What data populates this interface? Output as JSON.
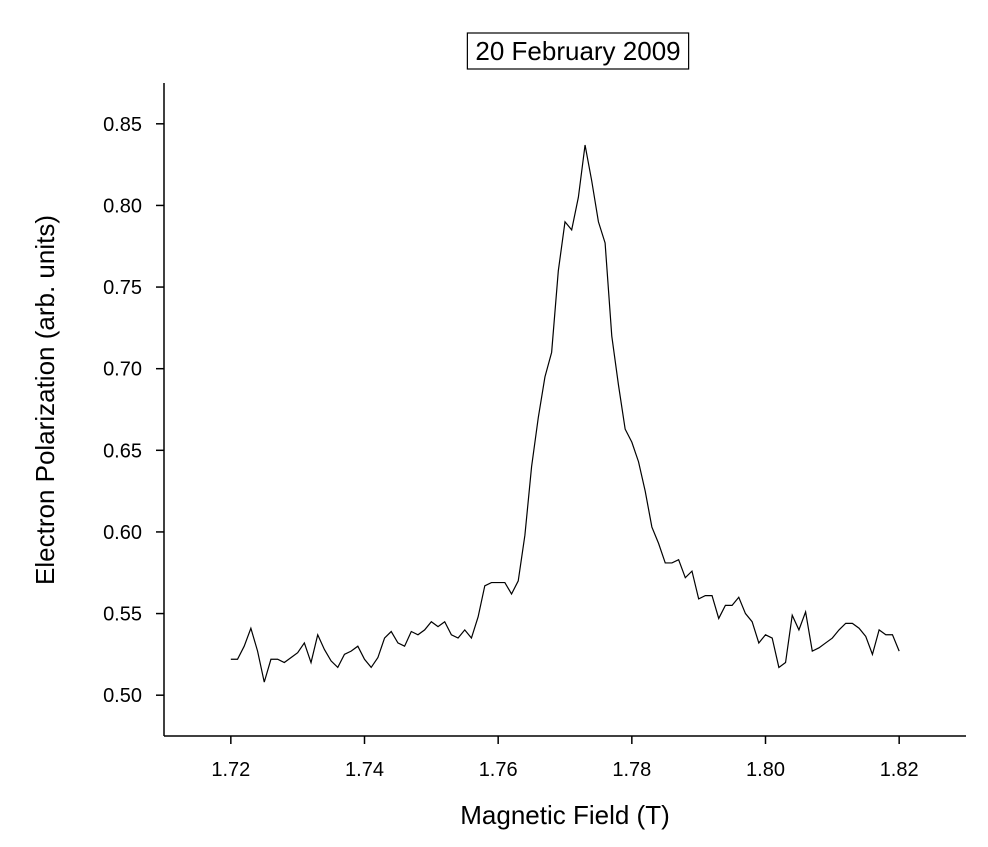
{
  "chart_data": {
    "type": "line",
    "title": "20 February 2009",
    "x_label": "Magnetic Field (T)",
    "y_label": "Electron Polarization (arb. units)",
    "x": [
      1.72,
      1.721,
      1.722,
      1.723,
      1.724,
      1.725,
      1.726,
      1.727,
      1.728,
      1.729,
      1.73,
      1.731,
      1.732,
      1.733,
      1.734,
      1.735,
      1.736,
      1.737,
      1.738,
      1.739,
      1.74,
      1.741,
      1.742,
      1.743,
      1.744,
      1.745,
      1.746,
      1.747,
      1.748,
      1.749,
      1.75,
      1.751,
      1.752,
      1.753,
      1.754,
      1.755,
      1.756,
      1.757,
      1.758,
      1.759,
      1.76,
      1.761,
      1.762,
      1.763,
      1.764,
      1.765,
      1.766,
      1.767,
      1.768,
      1.769,
      1.77,
      1.771,
      1.772,
      1.773,
      1.774,
      1.775,
      1.776,
      1.777,
      1.778,
      1.779,
      1.78,
      1.781,
      1.782,
      1.783,
      1.784,
      1.785,
      1.786,
      1.787,
      1.788,
      1.789,
      1.79,
      1.791,
      1.792,
      1.793,
      1.794,
      1.795,
      1.796,
      1.797,
      1.798,
      1.799,
      1.8,
      1.801,
      1.802,
      1.803,
      1.804,
      1.805,
      1.806,
      1.807,
      1.808,
      1.809,
      1.81,
      1.811,
      1.812,
      1.813,
      1.814,
      1.815,
      1.816,
      1.817,
      1.818,
      1.819,
      1.82
    ],
    "series": [
      {
        "color": "#000000",
        "values": [
          0.522,
          0.522,
          0.53,
          0.541,
          0.527,
          0.508,
          0.522,
          0.522,
          0.52,
          0.523,
          0.526,
          0.532,
          0.52,
          0.537,
          0.528,
          0.521,
          0.517,
          0.525,
          0.527,
          0.53,
          0.522,
          0.517,
          0.523,
          0.535,
          0.539,
          0.532,
          0.53,
          0.539,
          0.537,
          0.54,
          0.545,
          0.542,
          0.545,
          0.537,
          0.535,
          0.54,
          0.535,
          0.548,
          0.567,
          0.569,
          0.569,
          0.569,
          0.562,
          0.57,
          0.598,
          0.64,
          0.67,
          0.695,
          0.71,
          0.76,
          0.79,
          0.785,
          0.805,
          0.837,
          0.815,
          0.79,
          0.777,
          0.72,
          0.69,
          0.663,
          0.655,
          0.643,
          0.625,
          0.603,
          0.593,
          0.581,
          0.581,
          0.583,
          0.572,
          0.576,
          0.559,
          0.561,
          0.561,
          0.547,
          0.555,
          0.555,
          0.56,
          0.55,
          0.545,
          0.532,
          0.537,
          0.535,
          0.517,
          0.52,
          0.549,
          0.54,
          0.551,
          0.527,
          0.529,
          0.532,
          0.535,
          0.54,
          0.544,
          0.544,
          0.541,
          0.536,
          0.525,
          0.54,
          0.537,
          0.537,
          0.527
        ]
      }
    ],
    "xlim": [
      1.71,
      1.83
    ],
    "xticks": [
      1.72,
      1.74,
      1.76,
      1.78,
      {
        "value": 1.8,
        "label": "1.80"
      },
      1.82
    ],
    "ylim": [
      0.475,
      0.875
    ],
    "yticks": [
      {
        "value": 0.5,
        "label": "0.50"
      },
      0.55,
      {
        "value": 0.6,
        "label": "0.60"
      },
      0.65,
      {
        "value": 0.7,
        "label": "0.70"
      },
      0.75,
      {
        "value": 0.8,
        "label": "0.80"
      },
      0.85
    ],
    "grid": false
  }
}
